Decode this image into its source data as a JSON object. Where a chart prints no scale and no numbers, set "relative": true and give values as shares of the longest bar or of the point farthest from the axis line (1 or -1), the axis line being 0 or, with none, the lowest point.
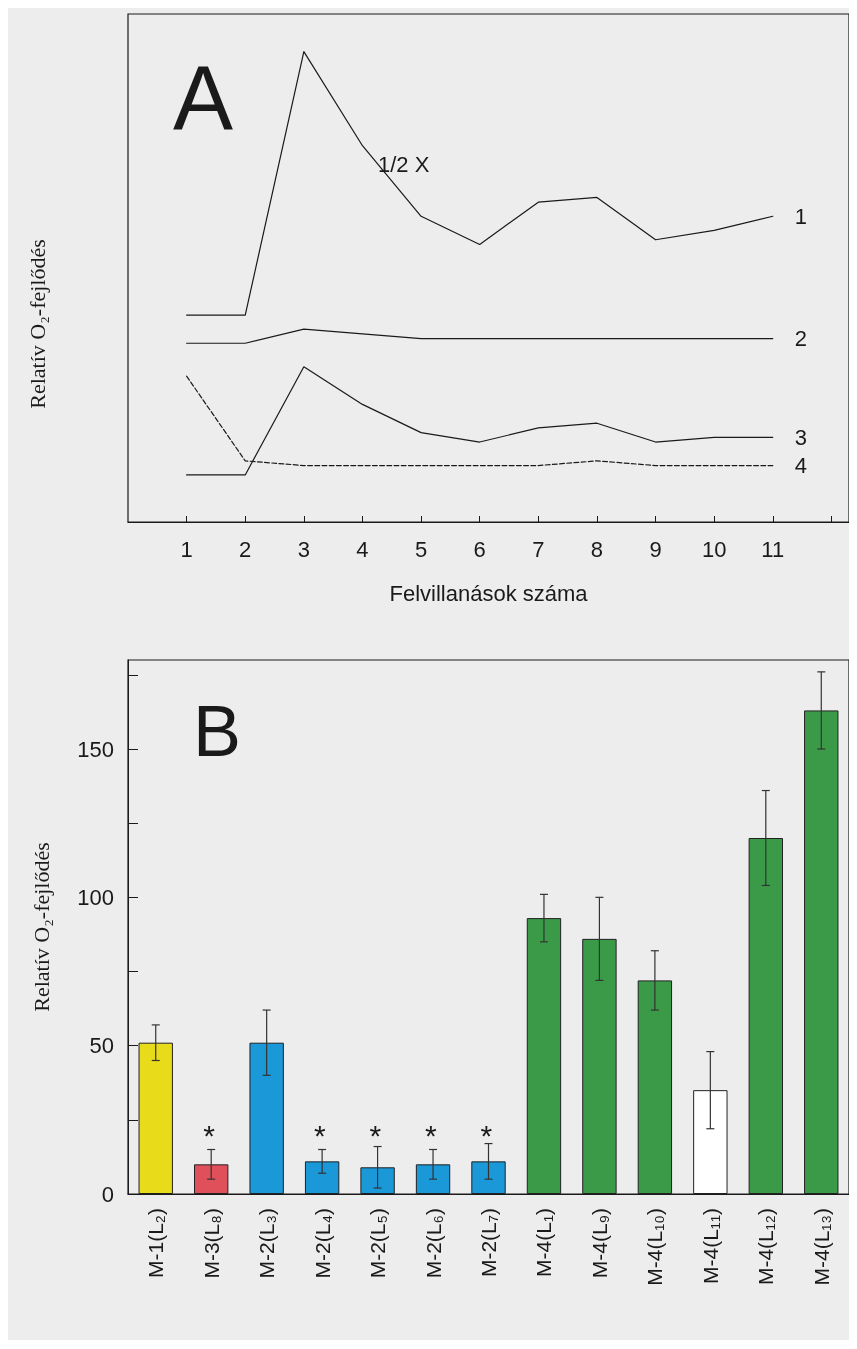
{
  "chart_data": [
    {
      "type": "line",
      "relative": true,
      "xlabel": "Felvillanások száma",
      "ylabel": "Relatív O₂-fejlődés",
      "annotations": [
        "A",
        "1/2 X"
      ],
      "x": [
        1,
        2,
        3,
        4,
        5,
        6,
        7,
        8,
        9,
        10,
        11
      ],
      "xlim": [
        0,
        12.3
      ],
      "xticks": [
        1,
        2,
        3,
        4,
        5,
        6,
        7,
        8,
        9,
        10,
        11,
        {
          "value": 12,
          "label": null
        }
      ],
      "series": [
        {
          "name": "1",
          "color": "#1a1a1a",
          "values": [
            0.44,
            0.44,
            1.0,
            0.8,
            0.65,
            0.59,
            0.68,
            0.69,
            0.6,
            0.62,
            0.65
          ]
        },
        {
          "name": "2",
          "color": "#1a1a1a",
          "values": [
            0.38,
            0.38,
            0.41,
            0.4,
            0.39,
            0.39,
            0.39,
            0.39,
            0.39,
            0.39,
            0.39
          ]
        },
        {
          "name": "3",
          "color": "#1a1a1a",
          "values": [
            0.1,
            0.1,
            0.33,
            0.25,
            0.19,
            0.17,
            0.2,
            0.21,
            0.17,
            0.18,
            0.18
          ]
        },
        {
          "name": "4",
          "color": "#1a1a1a",
          "line_style": "dashed",
          "values": [
            0.31,
            0.13,
            0.12,
            0.12,
            0.12,
            0.12,
            0.12,
            0.13,
            0.12,
            0.12,
            0.12
          ]
        }
      ],
      "marker": "none",
      "grid": false,
      "legend": false
    },
    {
      "type": "bar",
      "ylabel": "Relatív O₂-fejlődés",
      "annotations": [
        "B",
        "*",
        "*",
        "*",
        "*",
        "*"
      ],
      "categories": [
        "M-1(L₂)",
        "M-3(L₈)",
        "M-2(L₃)",
        "M-2(L₄)",
        "M-2(L₅)",
        "M-2(L₆)",
        "M-2(L₇)",
        "M-4(L₁)",
        "M-4(L₉)",
        "M-4(L₁₀)",
        "M-4(L₁₁)",
        "M-4(L₁₂)",
        "M-4(L₁₃)"
      ],
      "values": [
        51,
        10,
        51,
        11,
        9,
        10,
        11,
        93,
        86,
        72,
        35,
        120,
        163
      ],
      "errors": [
        6,
        5,
        11,
        4,
        7,
        5,
        6,
        8,
        14,
        10,
        13,
        16,
        13
      ],
      "colors": [
        "#e8dc1a",
        "#e0505a",
        "#1a98d8",
        "#1a98d8",
        "#1a98d8",
        "#1a98d8",
        "#1a98d8",
        "#3a9a48",
        "#3a9a48",
        "#3a9a48",
        "#ffffff",
        "#3a9a48",
        "#3a9a48"
      ],
      "ylim": [
        0,
        180
      ],
      "yticks": [
        0,
        {
          "value": 25,
          "label": null
        },
        50,
        {
          "value": 75,
          "label": null
        },
        100,
        {
          "value": 125,
          "label": null
        },
        150,
        {
          "value": 175,
          "label": null
        }
      ],
      "grid": false,
      "legend": false
    }
  ]
}
